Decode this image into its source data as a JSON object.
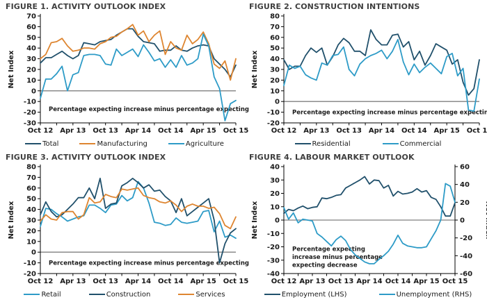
{
  "page": {
    "background": "#ffffff"
  },
  "colors": {
    "navy": "#20506B",
    "orange": "#DE8530",
    "cyan": "#2D9BC7",
    "zero_line": "#7F7F7F",
    "axis": "#000000",
    "title_text": "#3F3F3F"
  },
  "chart_data": [
    {
      "type": "line",
      "title": "FIGURE 1. ACTIVITY OUTLOOK INDEX",
      "ylabel": "Net Index",
      "ylim": [
        -30,
        70
      ],
      "ytick_step": 10,
      "x_tick_labels": [
        "Oct 12",
        "Apr 13",
        "Oct 13",
        "Apr 14",
        "Oct 14",
        "Apr 15",
        "Oct 15"
      ],
      "annotation_lines": [
        "Percentage expecting increase minus percentage expecting decrease"
      ],
      "annotation_value_y": -19,
      "legend_position": "bottom",
      "legend_gap": 30,
      "series": [
        {
          "name": "Total",
          "color_key": "navy",
          "values": [
            26,
            31,
            31,
            34,
            37,
            33,
            30,
            33,
            45,
            44,
            43,
            46,
            47,
            48,
            52,
            55,
            58,
            58,
            51,
            46,
            45,
            44,
            37,
            38,
            38,
            42,
            38,
            37,
            40,
            42,
            43,
            42,
            30,
            25,
            20,
            13,
            24
          ]
        },
        {
          "name": "Manufacturing",
          "color_key": "orange",
          "values": [
            30,
            34,
            45,
            46,
            49,
            42,
            37,
            38,
            40,
            40,
            39,
            44,
            46,
            50,
            51,
            55,
            58,
            62,
            52,
            56,
            46,
            52,
            56,
            34,
            46,
            40,
            38,
            52,
            44,
            48,
            55,
            44,
            25,
            21,
            28,
            10,
            30
          ]
        },
        {
          "name": "Agriculture",
          "color_key": "cyan",
          "values": [
            -7,
            11,
            11,
            16,
            23,
            0,
            15,
            17,
            33,
            34,
            34,
            33,
            25,
            24,
            39,
            33,
            36,
            39,
            32,
            43,
            36,
            28,
            30,
            22,
            29,
            22,
            33,
            24,
            26,
            30,
            53,
            42,
            13,
            2,
            -28,
            -12,
            -9
          ]
        }
      ]
    },
    {
      "type": "line",
      "title": "FIGURE 2. CONSTRUCTION INTENTIONS",
      "ylabel": "Net Index",
      "ylim": [
        -20,
        80
      ],
      "ytick_step": 10,
      "x_tick_labels": [
        "Oct 12",
        "Apr 13",
        "Oct 13",
        "Apr 14",
        "Oct 14",
        "Apr 15",
        "Oct 15"
      ],
      "annotation_lines": [
        "Percentage expecting increase minus percentage expecting decrease"
      ],
      "annotation_value_y": -12,
      "legend_position": "bottom",
      "legend_gap": 46,
      "series": [
        {
          "name": "Residential",
          "color_key": "navy",
          "values": [
            39,
            30,
            33,
            33,
            43,
            50,
            46,
            50,
            34,
            42,
            53,
            59,
            55,
            47,
            47,
            43,
            67,
            58,
            53,
            53,
            62,
            63,
            51,
            56,
            39,
            47,
            34,
            43,
            54,
            51,
            48,
            35,
            39,
            18,
            6,
            12,
            39
          ]
        },
        {
          "name": "Commercial",
          "color_key": "cyan",
          "values": [
            15,
            34,
            31,
            33,
            25,
            22,
            20,
            36,
            34,
            43,
            44,
            51,
            30,
            24,
            35,
            40,
            43,
            45,
            48,
            40,
            47,
            58,
            37,
            25,
            35,
            27,
            32,
            36,
            31,
            26,
            42,
            45,
            24,
            31,
            -8,
            -9,
            21
          ]
        }
      ]
    },
    {
      "type": "line",
      "title": "FIGURE 3. ACTIVITY OUTLOOK INDEX",
      "ylabel": "Net Index",
      "ylim": [
        -20,
        80
      ],
      "ytick_step": 10,
      "x_tick_labels": [
        "Oct 12",
        "Apr 13",
        "Oct 13",
        "Apr 14",
        "Oct 14",
        "Apr 15",
        "Oct 15"
      ],
      "annotation_lines": [
        "Percentage expecting increase minus percentage expecting decrease"
      ],
      "annotation_value_y": -12,
      "legend_position": "bottom",
      "legend_gap": 40,
      "series": [
        {
          "name": "Retail",
          "color_key": "cyan",
          "values": [
            24,
            41,
            40,
            36,
            33,
            29,
            31,
            33,
            34,
            44,
            44,
            41,
            37,
            44,
            45,
            53,
            48,
            51,
            66,
            60,
            46,
            28,
            27,
            25,
            26,
            32,
            28,
            27,
            28,
            29,
            38,
            39,
            19,
            29,
            14,
            16,
            13
          ]
        },
        {
          "name": "Construction",
          "color_key": "navy",
          "values": [
            35,
            47,
            38,
            33,
            35,
            40,
            45,
            51,
            51,
            60,
            50,
            69,
            41,
            45,
            46,
            62,
            65,
            69,
            65,
            60,
            63,
            57,
            58,
            52,
            48,
            37,
            50,
            34,
            38,
            42,
            46,
            50,
            30,
            -10,
            8,
            18,
            22
          ]
        },
        {
          "name": "Services",
          "color_key": "orange",
          "values": [
            29,
            35,
            31,
            30,
            37,
            38,
            38,
            31,
            35,
            51,
            46,
            47,
            54,
            52,
            51,
            59,
            58,
            59,
            60,
            53,
            51,
            50,
            47,
            46,
            48,
            44,
            38,
            43,
            45,
            43,
            43,
            41,
            42,
            36,
            25,
            22,
            33
          ]
        }
      ]
    },
    {
      "type": "line",
      "title": "FIGURE 4. LABOUR MARKET OUTLOOK",
      "ylabel_left": "Net Index",
      "ylabel_right": "Net Index",
      "ylim": [
        -40,
        40
      ],
      "ytick_step": 10,
      "ylim_right": [
        -60,
        60
      ],
      "ytick_step_right": 20,
      "x_tick_labels": [
        "Oct 12",
        "Apr 13",
        "Oct 13",
        "Apr 14",
        "Oct 14",
        "Apr 15",
        "Oct 15"
      ],
      "annotation_lines": [
        "Percentage expecting",
        "increase minus percentage",
        "expecting decrease"
      ],
      "annotation_value_y": -23,
      "legend_position": "bottom",
      "legend_gap": 46,
      "series": [
        {
          "name": "Employment (LHS)",
          "color_key": "navy",
          "axis": "left",
          "values": [
            5,
            8,
            7,
            9,
            10.5,
            8.5,
            9.5,
            10,
            16.5,
            16,
            17,
            18.5,
            19,
            24,
            26,
            28,
            30,
            32.5,
            27,
            30,
            29.5,
            24,
            26,
            18,
            21.5,
            19.5,
            20,
            21,
            23.5,
            21,
            22,
            17,
            15.5,
            10,
            3,
            3,
            13
          ]
        },
        {
          "name": "Unemployment (RHS)",
          "color_key": "cyan",
          "axis": "right",
          "values": [
            14,
            1,
            8,
            -3,
            1,
            0,
            -1,
            -15,
            -19,
            -24,
            -29,
            -22,
            -18,
            -23,
            -33,
            -39,
            -43,
            -47,
            -49,
            -49,
            -44,
            -40,
            -35,
            -27,
            -17,
            -26,
            -29,
            -30,
            -31,
            -31,
            -30,
            -21,
            -12,
            0,
            41,
            38,
            20
          ]
        }
      ]
    }
  ]
}
